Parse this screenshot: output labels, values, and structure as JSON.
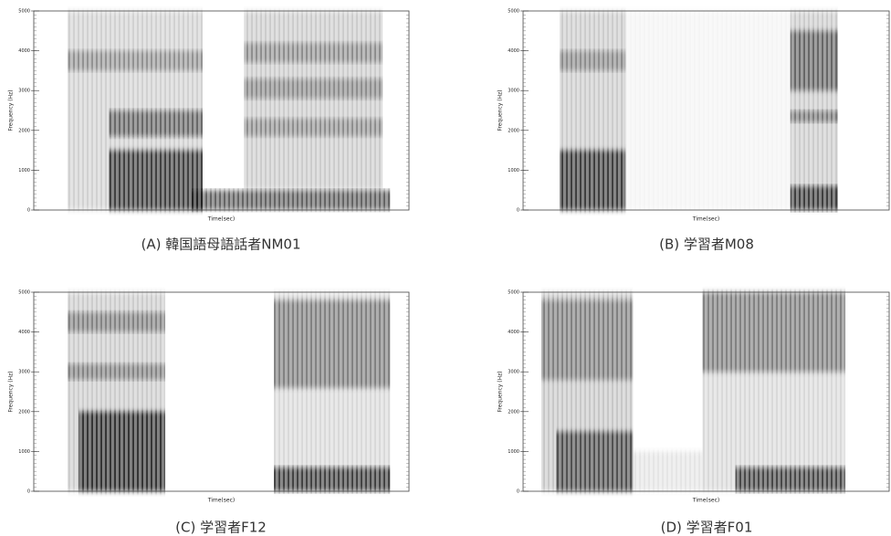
{
  "chart_data": [
    {
      "type": "spectrogram",
      "caption": "(A) 韓国語母語話者NM01",
      "xlabel": "Time(sec)",
      "ylabel": "Frequency (Hz)",
      "ylim": [
        0,
        5000
      ],
      "yticks": [
        0,
        1000,
        2000,
        3000,
        4000,
        5000
      ]
    },
    {
      "type": "spectrogram",
      "caption": "(B) 学習者M08",
      "xlabel": "Time(sec)",
      "ylabel": "Frequency (Hz)",
      "ylim": [
        0,
        5000
      ],
      "yticks": [
        0,
        1000,
        2000,
        3000,
        4000,
        5000
      ]
    },
    {
      "type": "spectrogram",
      "caption": "(C) 学習者F12",
      "xlabel": "Time(sec)",
      "ylabel": "Frequency (Hz)",
      "ylim": [
        0,
        5000
      ],
      "yticks": [
        0,
        1000,
        2000,
        3000,
        4000,
        5000
      ]
    },
    {
      "type": "spectrogram",
      "caption": "(D) 学習者F01",
      "xlabel": "Time(sec)",
      "ylabel": "Frequency (Hz)",
      "ylim": [
        0,
        5000
      ],
      "yticks": [
        0,
        1000,
        2000,
        3000,
        4000,
        5000
      ]
    }
  ]
}
